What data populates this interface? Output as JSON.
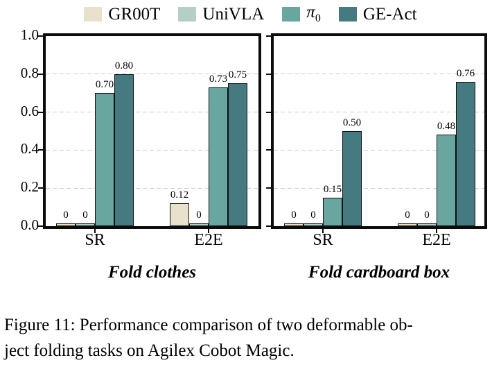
{
  "legend": {
    "items": [
      {
        "label": "GR00T",
        "color": "#e8e1cc"
      },
      {
        "label": "UniVLA",
        "color": "#b6cfc4"
      },
      {
        "label": "π",
        "sub": "0",
        "italic": true,
        "color": "#6aa6a0"
      },
      {
        "label": "GE-Act",
        "color": "#467a81"
      }
    ]
  },
  "chart_data": [
    {
      "type": "bar",
      "title": "Fold clothes",
      "categories": [
        "SR",
        "E2E"
      ],
      "series": [
        {
          "name": "GR00T",
          "values": [
            0,
            0.12
          ],
          "labels": [
            "0",
            "0.12"
          ]
        },
        {
          "name": "UniVLA",
          "values": [
            0,
            0
          ],
          "labels": [
            "0",
            "0"
          ]
        },
        {
          "name": "π0",
          "values": [
            0.7,
            0.73
          ],
          "labels": [
            "0.70",
            "0.73"
          ]
        },
        {
          "name": "GE-Act",
          "values": [
            0.8,
            0.75
          ],
          "labels": [
            "0.80",
            "0.75"
          ]
        }
      ],
      "ylim": [
        0,
        1.0
      ],
      "ytick_labels": [
        "1.0",
        "0.8",
        "0.6",
        "0.4",
        "0.2",
        "0.0"
      ],
      "show_ytick_labels": true,
      "grid": "dashed-horizontal",
      "legend_position": "top"
    },
    {
      "type": "bar",
      "title": "Fold cardboard box",
      "categories": [
        "SR",
        "E2E"
      ],
      "series": [
        {
          "name": "GR00T",
          "values": [
            0,
            0
          ],
          "labels": [
            "0",
            "0"
          ]
        },
        {
          "name": "UniVLA",
          "values": [
            0,
            0
          ],
          "labels": [
            "0",
            "0"
          ]
        },
        {
          "name": "π0",
          "values": [
            0.15,
            0.48
          ],
          "labels": [
            "0.15",
            "0.48"
          ]
        },
        {
          "name": "GE-Act",
          "values": [
            0.5,
            0.76
          ],
          "labels": [
            "0.50",
            "0.76"
          ]
        }
      ],
      "ylim": [
        0,
        1.0
      ],
      "ytick_labels": [
        "1.0",
        "0.8",
        "0.6",
        "0.4",
        "0.2",
        "0.0"
      ],
      "show_ytick_labels": false,
      "grid": "dashed-horizontal",
      "legend_position": "top"
    }
  ],
  "caption": {
    "line1": "Figure 11: Performance comparison of two deformable ob-",
    "line2": "ject folding tasks on Agilex Cobot Magic."
  }
}
